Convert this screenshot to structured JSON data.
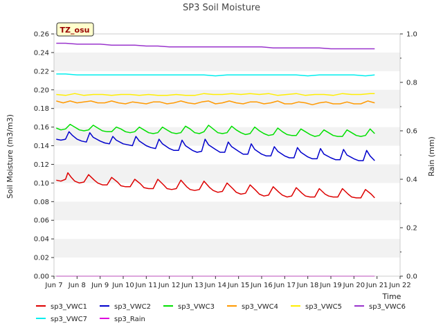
{
  "chart_data": {
    "type": "line",
    "title": "SP3 Soil Moisture",
    "station_label": "TZ_osu",
    "xlabel": "Time",
    "ylabel": "Soil Moisture (m3/m3)",
    "y2label": "Rain (mm)",
    "xlim": [
      7,
      22
    ],
    "ylim": [
      0,
      0.26
    ],
    "y2lim": [
      0,
      1.0
    ],
    "x_ticks": [
      7,
      8,
      9,
      10,
      11,
      12,
      13,
      14,
      15,
      16,
      17,
      18,
      19,
      20,
      21,
      22
    ],
    "x_tick_labels": [
      "Jun 7",
      "Jun 8",
      "Jun 9",
      "Jun 10",
      "Jun 11",
      "Jun 12",
      "Jun 13",
      "Jun 14",
      "Jun 15",
      "Jun 16",
      "Jun 17",
      "Jun 18",
      "Jun 19",
      "Jun 20",
      "Jun 21",
      "Jun 22"
    ],
    "y_ticks": [
      0.0,
      0.02,
      0.04,
      0.06,
      0.08,
      0.1,
      0.12,
      0.14,
      0.16,
      0.18,
      0.2,
      0.22,
      0.24,
      0.26
    ],
    "y_tick_labels": [
      "0.00",
      "0.02",
      "0.04",
      "0.06",
      "0.08",
      "0.10",
      "0.12",
      "0.14",
      "0.16",
      "0.18",
      "0.20",
      "0.22",
      "0.24",
      "0.26"
    ],
    "y2_ticks": [
      0.0,
      0.2,
      0.4,
      0.6,
      0.8,
      1.0
    ],
    "y2_tick_labels": [
      "0.0",
      "0.2",
      "0.4",
      "0.6",
      "0.8",
      "1.0"
    ],
    "grid": "horizontal bands",
    "legend_position": "bottom",
    "series": [
      {
        "name": "sp3_VWC1",
        "color": "#dd0000",
        "x": [
          7.1,
          7.3,
          7.5,
          7.6,
          7.75,
          7.9,
          8.1,
          8.3,
          8.5,
          8.75,
          8.9,
          9.1,
          9.3,
          9.5,
          9.75,
          9.9,
          10.1,
          10.3,
          10.5,
          10.75,
          10.9,
          11.1,
          11.3,
          11.5,
          11.75,
          11.9,
          12.1,
          12.3,
          12.5,
          12.75,
          12.9,
          13.1,
          13.3,
          13.5,
          13.75,
          13.9,
          14.1,
          14.3,
          14.5,
          14.75,
          14.9,
          15.1,
          15.3,
          15.5,
          15.75,
          15.9,
          16.1,
          16.3,
          16.5,
          16.75,
          16.9,
          17.1,
          17.3,
          17.5,
          17.75,
          17.9,
          18.1,
          18.3,
          18.5,
          18.75,
          18.9,
          19.1,
          19.3,
          19.5,
          19.75,
          19.9,
          20.1,
          20.3,
          20.5,
          20.75,
          20.9
        ],
        "y": [
          0.103,
          0.102,
          0.104,
          0.111,
          0.106,
          0.102,
          0.1,
          0.101,
          0.109,
          0.103,
          0.1,
          0.098,
          0.098,
          0.106,
          0.101,
          0.097,
          0.096,
          0.096,
          0.104,
          0.099,
          0.095,
          0.094,
          0.094,
          0.104,
          0.098,
          0.094,
          0.093,
          0.094,
          0.103,
          0.096,
          0.093,
          0.092,
          0.093,
          0.102,
          0.095,
          0.092,
          0.09,
          0.091,
          0.1,
          0.094,
          0.09,
          0.088,
          0.089,
          0.098,
          0.092,
          0.088,
          0.086,
          0.087,
          0.096,
          0.09,
          0.087,
          0.085,
          0.086,
          0.095,
          0.089,
          0.086,
          0.085,
          0.085,
          0.094,
          0.088,
          0.086,
          0.085,
          0.085,
          0.094,
          0.088,
          0.085,
          0.084,
          0.084,
          0.093,
          0.088,
          0.084
        ]
      },
      {
        "name": "sp3_VWC2",
        "color": "#0000cc",
        "x": [
          7.1,
          7.3,
          7.5,
          7.65,
          7.8,
          8.0,
          8.2,
          8.4,
          8.55,
          8.7,
          9.0,
          9.2,
          9.4,
          9.55,
          9.7,
          10.0,
          10.2,
          10.4,
          10.55,
          10.7,
          11.0,
          11.2,
          11.4,
          11.55,
          11.7,
          12.0,
          12.2,
          12.4,
          12.55,
          12.7,
          13.0,
          13.2,
          13.4,
          13.55,
          13.7,
          14.0,
          14.2,
          14.4,
          14.55,
          14.7,
          15.0,
          15.2,
          15.4,
          15.55,
          15.7,
          16.0,
          16.2,
          16.4,
          16.55,
          16.7,
          17.0,
          17.2,
          17.4,
          17.55,
          17.7,
          18.0,
          18.2,
          18.4,
          18.55,
          18.7,
          19.0,
          19.2,
          19.4,
          19.55,
          19.7,
          20.0,
          20.2,
          20.4,
          20.55,
          20.7,
          20.9
        ],
        "y": [
          0.147,
          0.146,
          0.147,
          0.155,
          0.151,
          0.147,
          0.145,
          0.144,
          0.154,
          0.149,
          0.145,
          0.143,
          0.142,
          0.15,
          0.146,
          0.142,
          0.141,
          0.14,
          0.15,
          0.145,
          0.14,
          0.138,
          0.137,
          0.147,
          0.142,
          0.137,
          0.135,
          0.135,
          0.146,
          0.14,
          0.135,
          0.133,
          0.134,
          0.147,
          0.141,
          0.136,
          0.133,
          0.133,
          0.144,
          0.139,
          0.134,
          0.131,
          0.131,
          0.142,
          0.136,
          0.131,
          0.129,
          0.129,
          0.139,
          0.134,
          0.129,
          0.127,
          0.127,
          0.138,
          0.133,
          0.128,
          0.126,
          0.126,
          0.137,
          0.131,
          0.127,
          0.125,
          0.125,
          0.136,
          0.13,
          0.126,
          0.124,
          0.124,
          0.135,
          0.129,
          0.124
        ]
      },
      {
        "name": "sp3_VWC3",
        "color": "#00e000",
        "x": [
          7.1,
          7.3,
          7.5,
          7.7,
          7.9,
          8.1,
          8.3,
          8.5,
          8.7,
          8.9,
          9.1,
          9.3,
          9.5,
          9.7,
          9.9,
          10.1,
          10.3,
          10.5,
          10.7,
          10.9,
          11.1,
          11.3,
          11.5,
          11.7,
          11.9,
          12.1,
          12.3,
          12.5,
          12.7,
          12.9,
          13.1,
          13.3,
          13.5,
          13.7,
          13.9,
          14.1,
          14.3,
          14.5,
          14.7,
          14.9,
          15.1,
          15.3,
          15.5,
          15.7,
          15.9,
          16.1,
          16.3,
          16.5,
          16.7,
          16.9,
          17.1,
          17.3,
          17.5,
          17.7,
          17.9,
          18.1,
          18.3,
          18.5,
          18.7,
          18.9,
          19.1,
          19.3,
          19.5,
          19.7,
          19.9,
          20.1,
          20.3,
          20.5,
          20.7,
          20.9
        ],
        "y": [
          0.159,
          0.157,
          0.158,
          0.163,
          0.16,
          0.157,
          0.156,
          0.157,
          0.162,
          0.159,
          0.156,
          0.155,
          0.155,
          0.16,
          0.158,
          0.155,
          0.154,
          0.155,
          0.16,
          0.157,
          0.154,
          0.153,
          0.154,
          0.16,
          0.157,
          0.154,
          0.153,
          0.154,
          0.161,
          0.158,
          0.154,
          0.153,
          0.155,
          0.162,
          0.158,
          0.154,
          0.153,
          0.154,
          0.161,
          0.157,
          0.154,
          0.152,
          0.153,
          0.16,
          0.156,
          0.153,
          0.151,
          0.152,
          0.159,
          0.155,
          0.152,
          0.151,
          0.151,
          0.158,
          0.155,
          0.152,
          0.15,
          0.151,
          0.157,
          0.154,
          0.151,
          0.15,
          0.15,
          0.157,
          0.154,
          0.151,
          0.15,
          0.151,
          0.158,
          0.153
        ]
      },
      {
        "name": "sp3_VWC4",
        "color": "#ff9900",
        "x": [
          7.1,
          7.4,
          7.7,
          8.0,
          8.3,
          8.6,
          8.9,
          9.2,
          9.5,
          9.8,
          10.1,
          10.4,
          10.7,
          11.0,
          11.3,
          11.6,
          11.9,
          12.2,
          12.5,
          12.8,
          13.1,
          13.4,
          13.7,
          14.0,
          14.3,
          14.6,
          14.9,
          15.2,
          15.5,
          15.8,
          16.1,
          16.4,
          16.7,
          17.0,
          17.3,
          17.6,
          17.9,
          18.2,
          18.5,
          18.8,
          19.1,
          19.4,
          19.7,
          20.0,
          20.3,
          20.6,
          20.9
        ],
        "y": [
          0.188,
          0.186,
          0.188,
          0.186,
          0.187,
          0.188,
          0.186,
          0.186,
          0.188,
          0.186,
          0.185,
          0.187,
          0.186,
          0.185,
          0.187,
          0.187,
          0.185,
          0.186,
          0.188,
          0.186,
          0.185,
          0.187,
          0.188,
          0.185,
          0.186,
          0.188,
          0.186,
          0.185,
          0.187,
          0.187,
          0.185,
          0.186,
          0.188,
          0.185,
          0.185,
          0.187,
          0.186,
          0.184,
          0.186,
          0.187,
          0.185,
          0.185,
          0.187,
          0.185,
          0.185,
          0.188,
          0.186
        ]
      },
      {
        "name": "sp3_VWC5",
        "color": "#ffee00",
        "x": [
          7.1,
          7.5,
          7.9,
          8.3,
          8.7,
          9.1,
          9.5,
          9.9,
          10.3,
          10.7,
          11.1,
          11.5,
          11.9,
          12.3,
          12.7,
          13.1,
          13.5,
          13.9,
          14.3,
          14.7,
          15.1,
          15.5,
          15.9,
          16.3,
          16.7,
          17.1,
          17.5,
          17.9,
          18.3,
          18.7,
          19.1,
          19.5,
          19.9,
          20.3,
          20.7,
          20.9
        ],
        "y": [
          0.195,
          0.194,
          0.196,
          0.194,
          0.195,
          0.195,
          0.194,
          0.195,
          0.195,
          0.194,
          0.195,
          0.194,
          0.194,
          0.195,
          0.194,
          0.194,
          0.196,
          0.195,
          0.195,
          0.196,
          0.195,
          0.196,
          0.195,
          0.196,
          0.194,
          0.195,
          0.196,
          0.194,
          0.195,
          0.195,
          0.194,
          0.196,
          0.195,
          0.195,
          0.196,
          0.196
        ]
      },
      {
        "name": "sp3_VWC6",
        "color": "#9933cc",
        "x": [
          7.1,
          7.5,
          8.0,
          8.5,
          9.0,
          9.5,
          10.0,
          10.5,
          11.0,
          11.5,
          12.0,
          12.5,
          13.0,
          13.5,
          14.0,
          14.5,
          15.0,
          15.5,
          16.0,
          16.5,
          17.0,
          17.5,
          18.0,
          18.5,
          19.0,
          19.5,
          20.0,
          20.5,
          20.9
        ],
        "y": [
          0.25,
          0.25,
          0.249,
          0.249,
          0.249,
          0.248,
          0.248,
          0.248,
          0.247,
          0.247,
          0.246,
          0.246,
          0.246,
          0.246,
          0.246,
          0.246,
          0.246,
          0.246,
          0.246,
          0.245,
          0.245,
          0.245,
          0.245,
          0.245,
          0.244,
          0.244,
          0.244,
          0.244,
          0.244
        ]
      },
      {
        "name": "sp3_VWC7",
        "color": "#00eeee",
        "x": [
          7.1,
          7.5,
          8.0,
          8.5,
          9.0,
          9.5,
          10.0,
          10.5,
          11.0,
          11.5,
          12.0,
          12.5,
          13.0,
          13.5,
          14.0,
          14.5,
          15.0,
          15.5,
          16.0,
          16.5,
          17.0,
          17.5,
          18.0,
          18.5,
          19.0,
          19.5,
          20.0,
          20.5,
          20.9
        ],
        "y": [
          0.217,
          0.217,
          0.216,
          0.216,
          0.216,
          0.216,
          0.216,
          0.216,
          0.216,
          0.216,
          0.216,
          0.216,
          0.216,
          0.216,
          0.215,
          0.216,
          0.216,
          0.216,
          0.216,
          0.216,
          0.216,
          0.216,
          0.215,
          0.216,
          0.216,
          0.216,
          0.216,
          0.215,
          0.216
        ]
      },
      {
        "name": "sp3_Rain",
        "color": "#dd00dd",
        "axis": "right",
        "x": [
          7.1,
          20.9
        ],
        "y": [
          0.0,
          0.0
        ]
      }
    ]
  }
}
